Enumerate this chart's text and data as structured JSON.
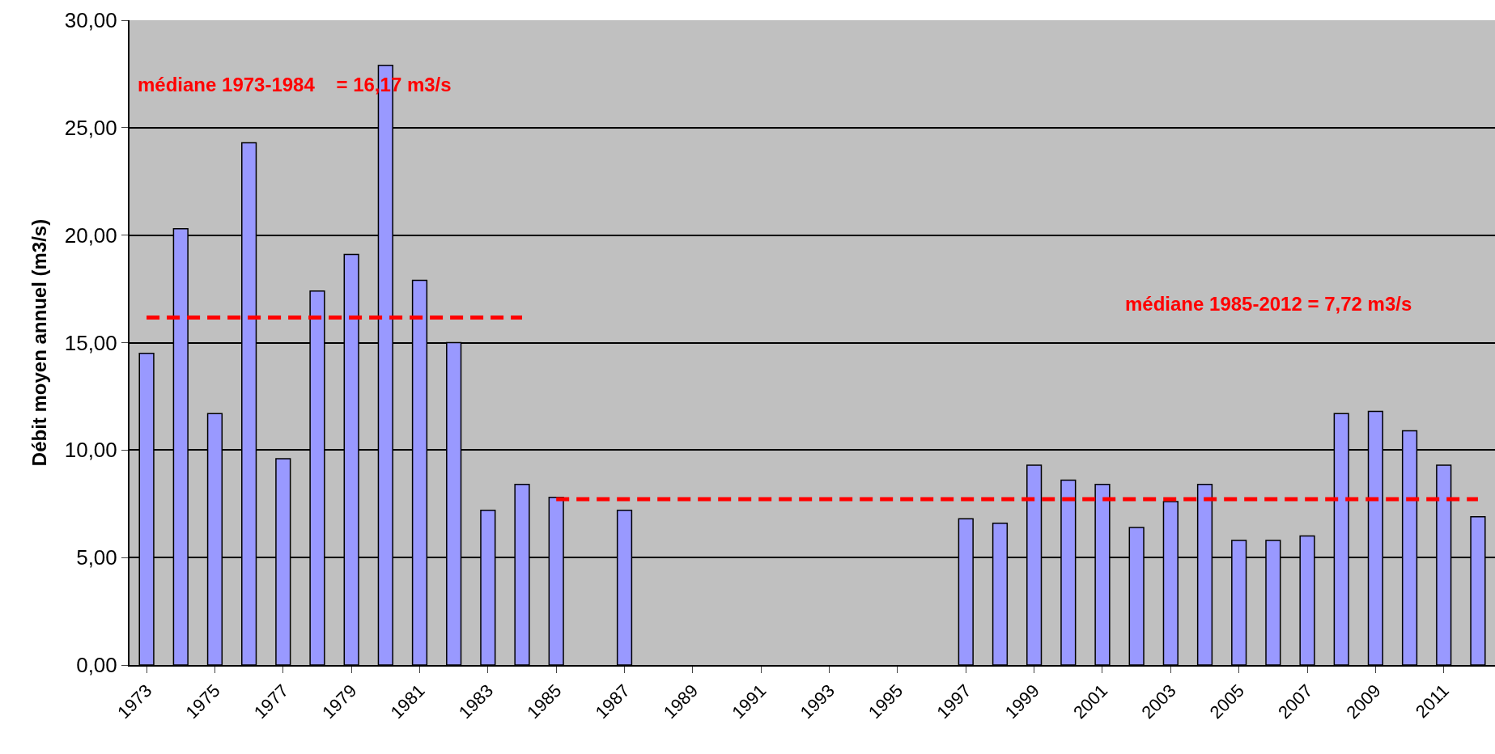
{
  "chart_data": {
    "type": "bar",
    "ylabel": "Débit moyen annuel (m3/s)",
    "categories": [
      "1973",
      null,
      "1975",
      null,
      "1977",
      null,
      "1979",
      null,
      "1981",
      null,
      "1983",
      null,
      "1985",
      null,
      "1987",
      null,
      "1989",
      null,
      "1991",
      null,
      "1993",
      null,
      "1995",
      null,
      "1997",
      null,
      "1999",
      null,
      "2001",
      null,
      "2003",
      null,
      "2005",
      null,
      "2007",
      null,
      "2009",
      null,
      "2011",
      null
    ],
    "series": [
      {
        "color": "#9999ff",
        "values": [
          14.5,
          20.3,
          11.7,
          24.3,
          9.6,
          17.4,
          19.1,
          27.9,
          17.9,
          15.0,
          7.2,
          8.4,
          7.8,
          null,
          7.2,
          null,
          null,
          null,
          null,
          null,
          null,
          null,
          null,
          null,
          6.8,
          6.6,
          9.3,
          8.6,
          8.4,
          6.4,
          7.6,
          8.4,
          5.8,
          5.8,
          6.0,
          11.7,
          11.8,
          10.9,
          9.3,
          6.9
        ]
      },
      {
        "type": "line",
        "color": "#ff0000",
        "line_style": "dashed",
        "values": [
          16.17,
          16.17,
          16.17,
          16.17,
          16.17,
          16.17,
          16.17,
          16.17,
          16.17,
          16.17,
          16.17,
          16.17,
          null,
          null,
          null,
          null,
          null,
          null,
          null,
          null,
          null,
          null,
          null,
          null,
          null,
          null,
          null,
          null,
          null,
          null,
          null,
          null,
          null,
          null,
          null,
          null,
          null,
          null,
          null,
          null
        ]
      },
      {
        "type": "line",
        "color": "#ff0000",
        "line_style": "dashed",
        "values": [
          null,
          null,
          null,
          null,
          null,
          null,
          null,
          null,
          null,
          null,
          null,
          null,
          7.72,
          7.72,
          7.72,
          7.72,
          7.72,
          7.72,
          7.72,
          7.72,
          7.72,
          7.72,
          7.72,
          7.72,
          7.72,
          7.72,
          7.72,
          7.72,
          7.72,
          7.72,
          7.72,
          7.72,
          7.72,
          7.72,
          7.72,
          7.72,
          7.72,
          7.72,
          7.72,
          7.72
        ]
      }
    ],
    "annotations": [
      "médiane 1973-1984    = 16,17 m3/s",
      "médiane 1985-2012 = 7,72 m3/s"
    ],
    "ylim": [
      0,
      30
    ],
    "yticks": [
      {
        "value": 0,
        "label": "0,00"
      },
      {
        "value": 5,
        "label": "5,00"
      },
      {
        "value": 10,
        "label": "10,00"
      },
      {
        "value": 15,
        "label": "15,00"
      },
      {
        "value": 20,
        "label": "20,00"
      },
      {
        "value": 25,
        "label": "25,00"
      },
      {
        "value": 30,
        "label": "30,00"
      }
    ],
    "grid": "y"
  }
}
